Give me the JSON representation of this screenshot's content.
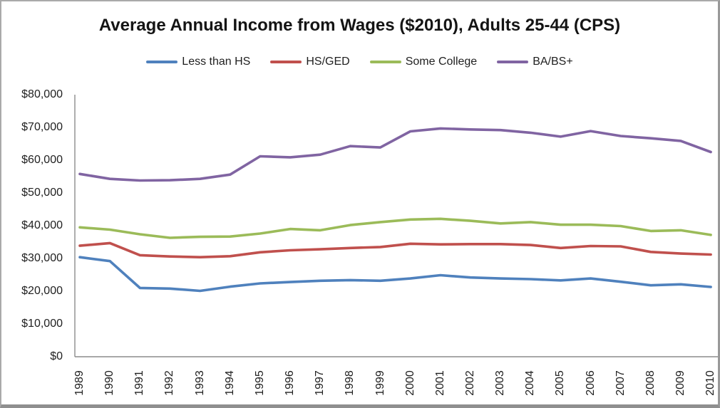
{
  "chart_data": {
    "type": "line",
    "title": "Average Annual Income from Wages ($2010), Adults 25-44 (CPS)",
    "xlabel": "",
    "ylabel": "",
    "x": [
      1989,
      1990,
      1991,
      1992,
      1993,
      1994,
      1995,
      1996,
      1997,
      1998,
      1999,
      2000,
      2001,
      2002,
      2003,
      2004,
      2005,
      2006,
      2007,
      2008,
      2009,
      2010
    ],
    "series": [
      {
        "name": "Less than HS",
        "color": "#4F81BD",
        "values": [
          30400,
          29200,
          21000,
          20800,
          20100,
          21400,
          22400,
          22800,
          23200,
          23400,
          23200,
          23900,
          24900,
          24200,
          23900,
          23700,
          23300,
          23900,
          22900,
          21800,
          22100,
          21300
        ]
      },
      {
        "name": "HS/GED",
        "color": "#C0504D",
        "values": [
          33900,
          34700,
          31000,
          30600,
          30400,
          30700,
          31900,
          32500,
          32800,
          33200,
          33500,
          34500,
          34300,
          34400,
          34400,
          34100,
          33200,
          33800,
          33700,
          32000,
          31500,
          31200
        ]
      },
      {
        "name": "Some College",
        "color": "#9BBB59",
        "values": [
          39500,
          38800,
          37400,
          36300,
          36600,
          36700,
          37600,
          39000,
          38600,
          40200,
          41100,
          41900,
          42100,
          41500,
          40700,
          41100,
          40300,
          40300,
          39900,
          38400,
          38600,
          37200
        ]
      },
      {
        "name": "BA/BS+",
        "color": "#8064A2",
        "values": [
          55800,
          54300,
          53800,
          53900,
          54300,
          55600,
          61200,
          60900,
          61700,
          64300,
          63900,
          68800,
          69700,
          69400,
          69200,
          68400,
          67200,
          68900,
          67400,
          66700,
          65900,
          62500
        ]
      }
    ],
    "ylim": [
      0,
      80000
    ],
    "y_tick_step": 10000,
    "y_tick_labels": [
      "$0",
      "$10,000",
      "$20,000",
      "$30,000",
      "$40,000",
      "$50,000",
      "$60,000",
      "$70,000",
      "$80,000"
    ],
    "grid": false,
    "legend_position": "top-center",
    "axis_color": "#8c8c8c",
    "text_color": "#1f1f1f",
    "line_width": 3.6
  }
}
